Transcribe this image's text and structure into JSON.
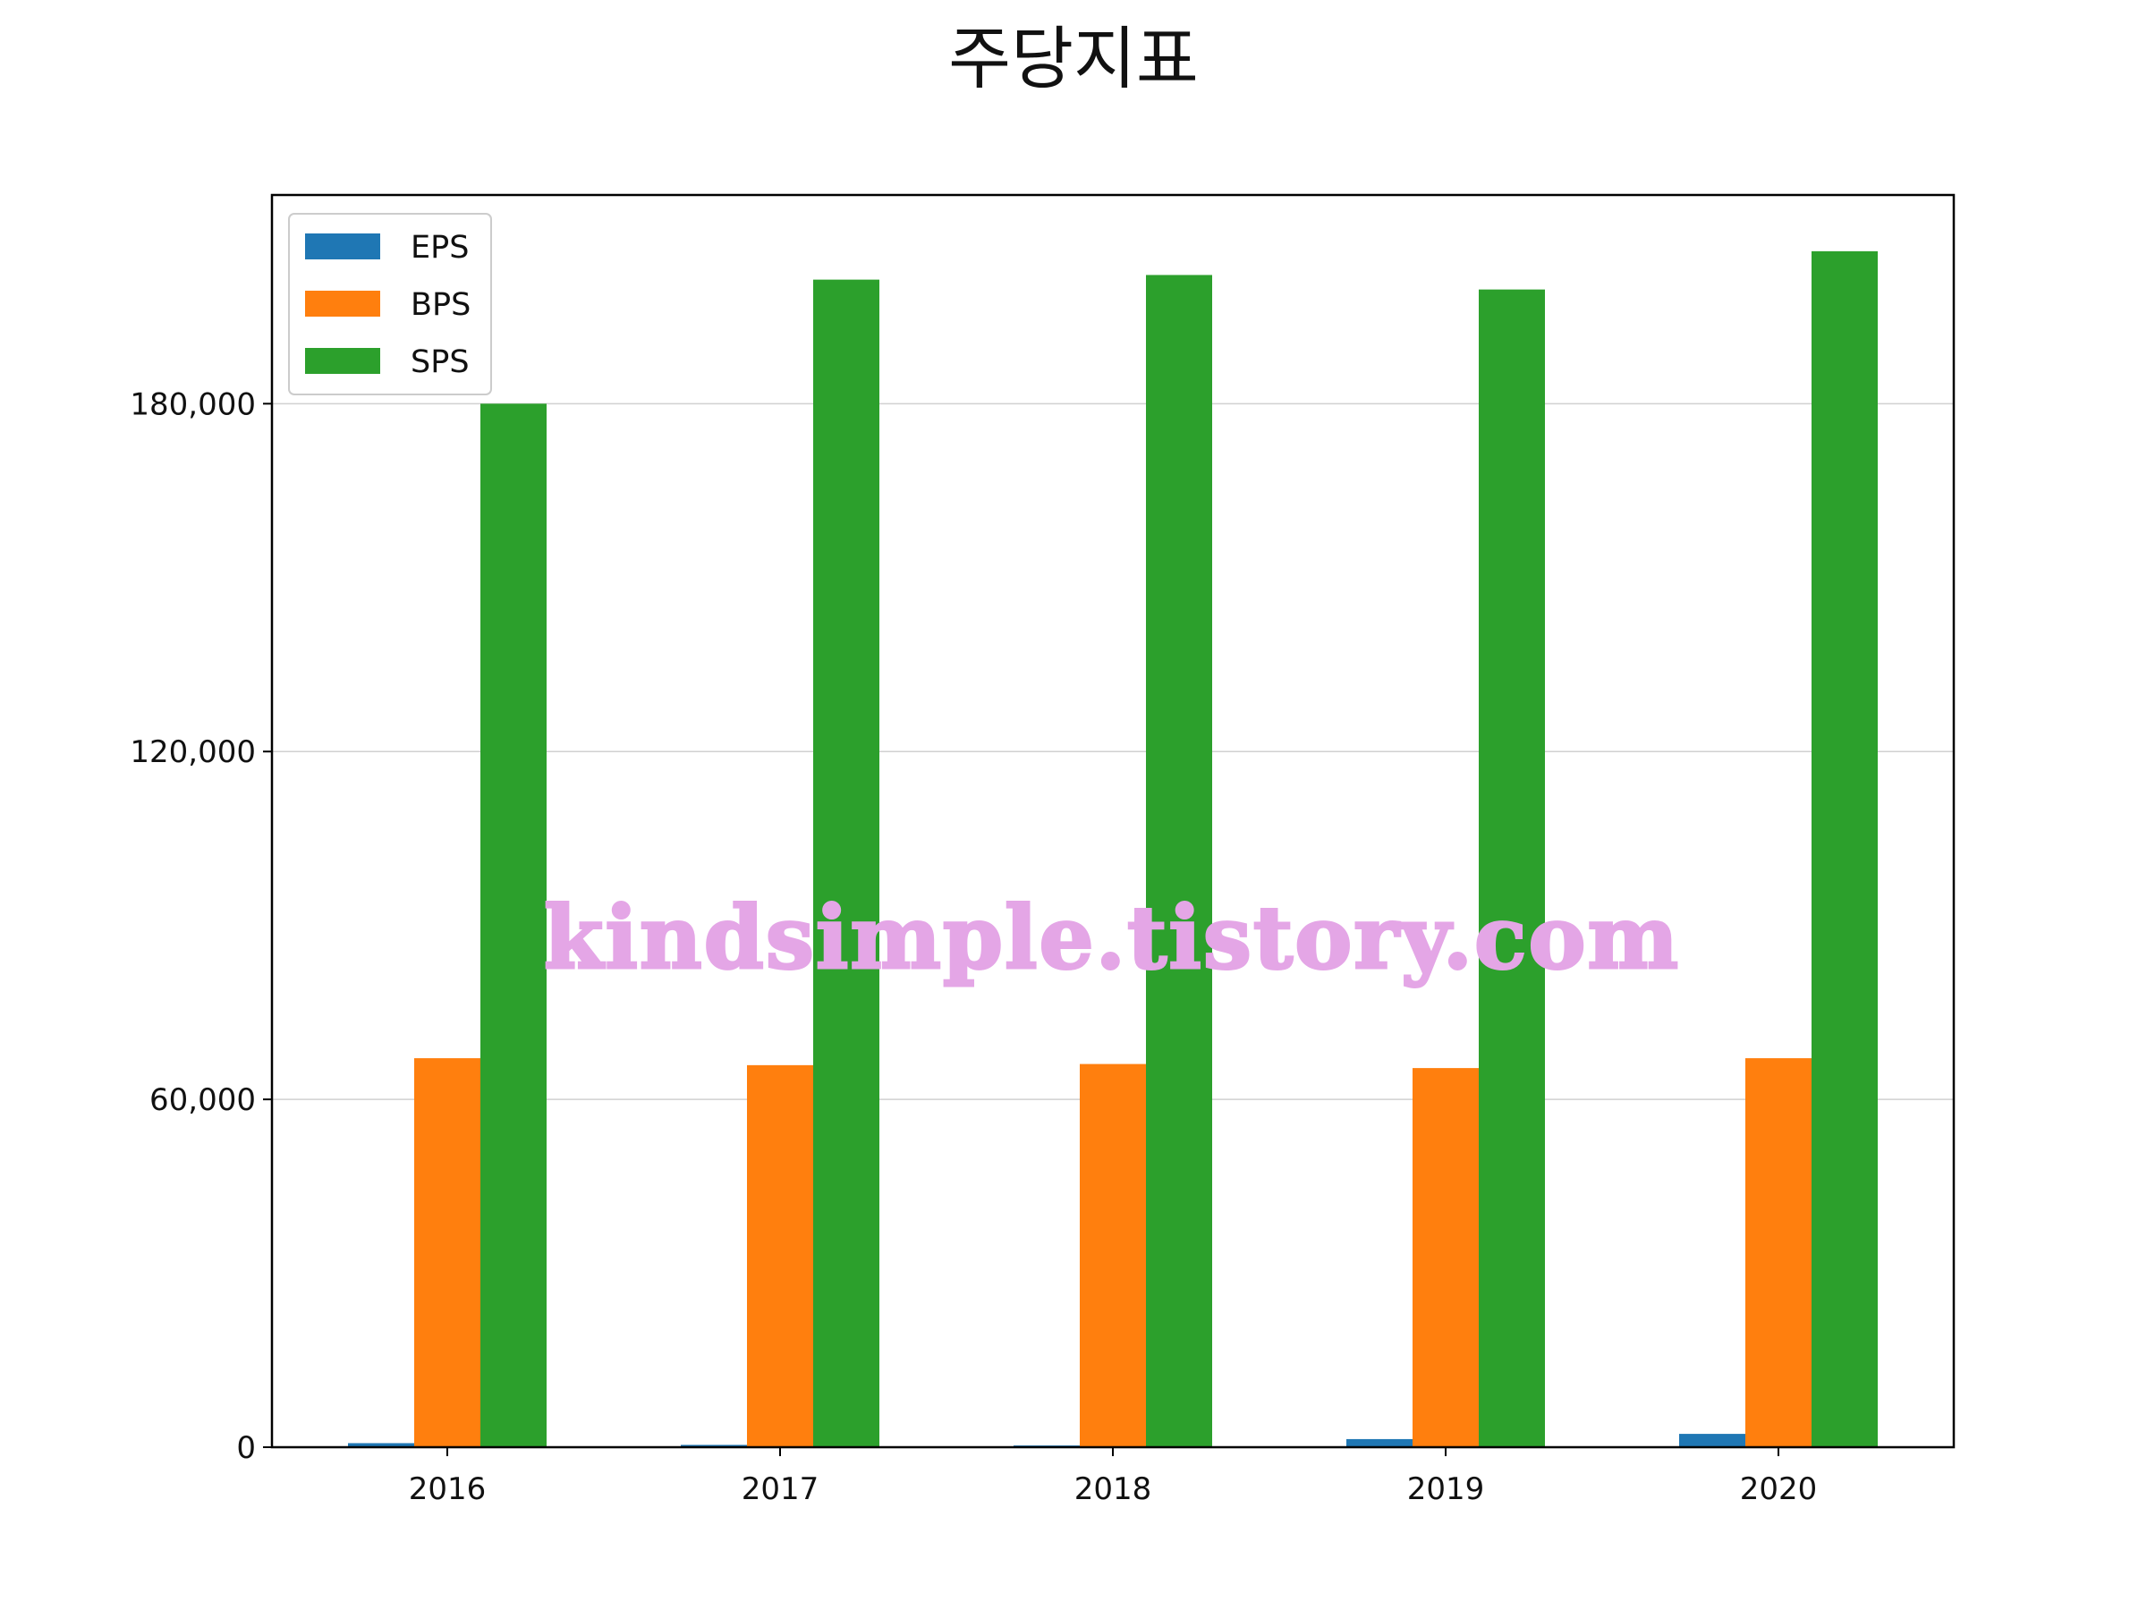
{
  "chart_data": {
    "type": "bar",
    "title": "주당지표",
    "xlabel": "",
    "ylabel": "",
    "categories": [
      "2016",
      "2017",
      "2018",
      "2019",
      "2020"
    ],
    "series": [
      {
        "name": "EPS",
        "color": "#1f77b4",
        "values": [
          700,
          400,
          300,
          1400,
          2300
        ]
      },
      {
        "name": "BPS",
        "color": "#ff7f0e",
        "values": [
          67100,
          65900,
          66100,
          65400,
          67100
        ]
      },
      {
        "name": "SPS",
        "color": "#2ca02c",
        "values": [
          180000,
          201400,
          202200,
          199700,
          206300
        ]
      }
    ],
    "yticks": [
      0,
      60000,
      120000,
      180000
    ],
    "ytick_labels": [
      "0",
      "60,000",
      "120,000",
      "180,000"
    ],
    "ylim": [
      0,
      216000
    ],
    "grid": "y",
    "legend_position": "upper left",
    "watermark": "kindsimple.tistory.com"
  }
}
